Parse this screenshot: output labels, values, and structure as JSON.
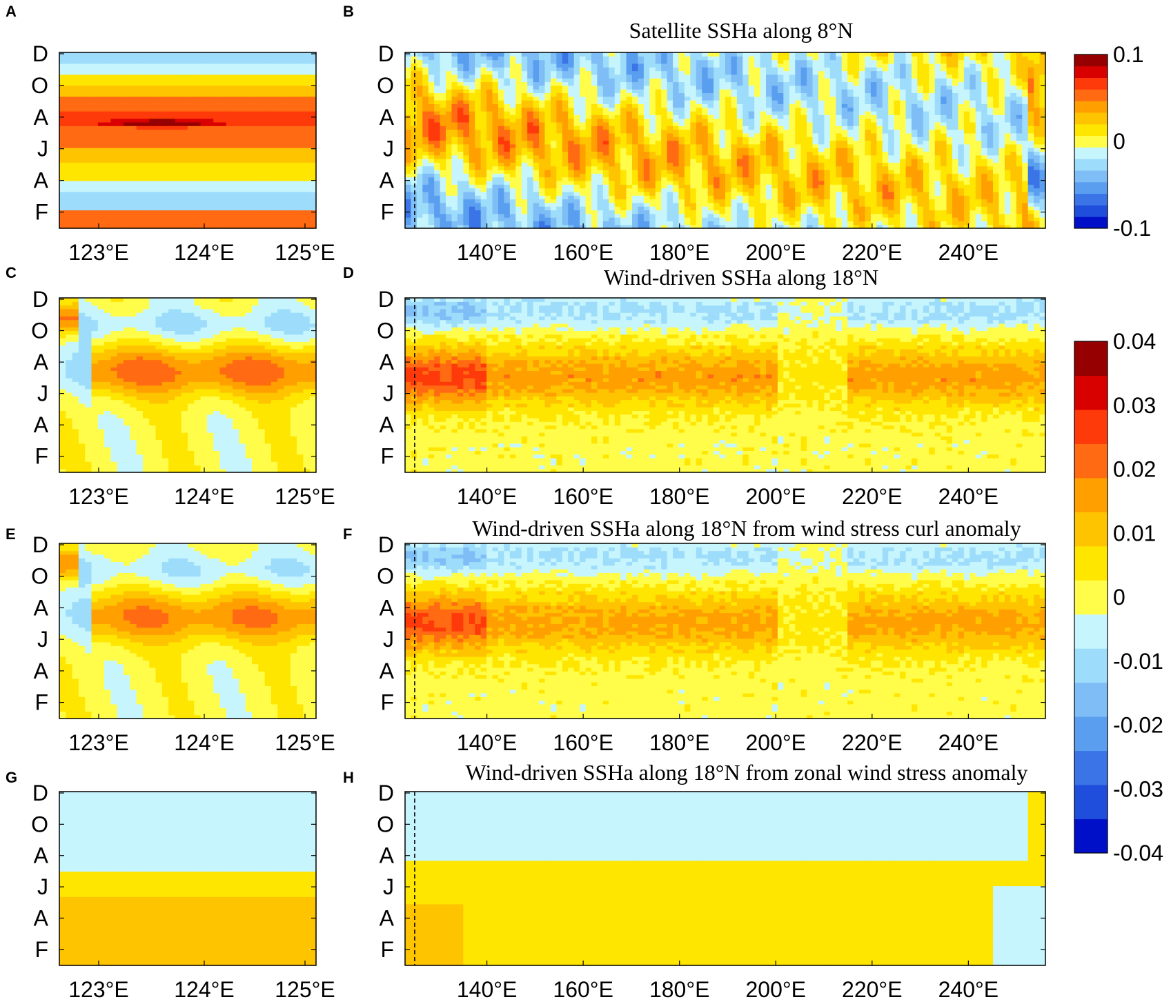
{
  "figure": {
    "panel_letters": [
      "A",
      "B",
      "C",
      "D",
      "E",
      "F",
      "G",
      "H"
    ],
    "month_labels": [
      "D",
      "O",
      "A",
      "J",
      "A",
      "F"
    ],
    "left_x_ticks": [
      "123°E",
      "124°E",
      "125°E"
    ],
    "right_x_ticks": [
      "140°E",
      "160°E",
      "180°E",
      "200°E",
      "220°E",
      "240°E"
    ]
  },
  "colors": {
    "scale": [
      "#0010c8",
      "#1f4ddc",
      "#3a74e6",
      "#5a9ef0",
      "#7fbdf6",
      "#9ddcfa",
      "#c6f5fd",
      "#fffd4a",
      "#ffe600",
      "#ffc400",
      "#ff9f00",
      "#ff6a12",
      "#ff3a0a",
      "#d90000",
      "#960000"
    ]
  },
  "chart_data": [
    {
      "panel": "A",
      "type": "heatmap",
      "title": "",
      "x": [
        122.6,
        125.1
      ],
      "xticks": [
        "123°E",
        "124°E",
        "125°E"
      ],
      "y_months": [
        "F",
        "A",
        "J",
        "A",
        "O",
        "D"
      ],
      "bands": [
        {
          "level": 0.06,
          "start": 0
        },
        {
          "level": -0.02,
          "start": 0.11
        },
        {
          "level": -0.01,
          "start": 0.2
        },
        {
          "level": 0.01,
          "start": 0.28
        },
        {
          "level": 0.02,
          "start": 0.38
        },
        {
          "level": 0.05,
          "start": 0.46
        },
        {
          "level": 0.06,
          "start": 0.58
        },
        {
          "level": 0.05,
          "start": 0.67
        },
        {
          "level": 0.02,
          "start": 0.75
        },
        {
          "level": 0.01,
          "start": 0.81
        },
        {
          "level": -0.01,
          "start": 0.87
        },
        {
          "level": -0.02,
          "start": 0.93
        }
      ],
      "cmap": "sat",
      "clim": [
        -0.1,
        0.1
      ]
    },
    {
      "panel": "B",
      "type": "heatmap",
      "title": "Satellite SSHa along 8°N",
      "x": [
        123,
        256
      ],
      "xticks": [
        "140°E",
        "160°E",
        "180°E",
        "200°E",
        "220°E",
        "240°E"
      ],
      "xtick_values": [
        140,
        160,
        180,
        200,
        220,
        240
      ],
      "y_months": [
        "F",
        "A",
        "J",
        "A",
        "O",
        "D"
      ],
      "dashed_x": 125,
      "cmap": "sat",
      "clim": [
        -0.1,
        0.1
      ]
    },
    {
      "panel": "C",
      "type": "heatmap",
      "title": "",
      "x": [
        122.6,
        125.1
      ],
      "xticks": [
        "123°E",
        "124°E",
        "125°E"
      ],
      "y_months": [
        "F",
        "A",
        "J",
        "A",
        "O",
        "D"
      ],
      "cmap": "wind",
      "clim": [
        -0.04,
        0.04
      ]
    },
    {
      "panel": "D",
      "type": "heatmap",
      "title": "Wind-driven SSHa along 18°N",
      "x": [
        123,
        256
      ],
      "xticks": [
        "140°E",
        "160°E",
        "180°E",
        "200°E",
        "220°E",
        "240°E"
      ],
      "xtick_values": [
        140,
        160,
        180,
        200,
        220,
        240
      ],
      "y_months": [
        "F",
        "A",
        "J",
        "A",
        "O",
        "D"
      ],
      "dashed_x": 125,
      "cmap": "wind",
      "clim": [
        -0.04,
        0.04
      ]
    },
    {
      "panel": "E",
      "type": "heatmap",
      "title": "",
      "x": [
        122.6,
        125.1
      ],
      "xticks": [
        "123°E",
        "124°E",
        "125°E"
      ],
      "y_months": [
        "F",
        "A",
        "J",
        "A",
        "O",
        "D"
      ],
      "cmap": "wind",
      "clim": [
        -0.04,
        0.04
      ]
    },
    {
      "panel": "F",
      "type": "heatmap",
      "title": "Wind-driven SSHa along 18°N from wind stress curl anomaly",
      "x": [
        123,
        256
      ],
      "xticks": [
        "140°E",
        "160°E",
        "180°E",
        "200°E",
        "220°E",
        "240°E"
      ],
      "xtick_values": [
        140,
        160,
        180,
        200,
        220,
        240
      ],
      "y_months": [
        "F",
        "A",
        "J",
        "A",
        "O",
        "D"
      ],
      "dashed_x": 125,
      "cmap": "wind",
      "clim": [
        -0.04,
        0.04
      ]
    },
    {
      "panel": "G",
      "type": "heatmap",
      "title": "",
      "x": [
        122.6,
        125.1
      ],
      "xticks": [
        "123°E",
        "124°E",
        "125°E"
      ],
      "y_months": [
        "F",
        "A",
        "J",
        "A",
        "O",
        "D"
      ],
      "cmap": "wind",
      "clim": [
        -0.04,
        0.04
      ]
    },
    {
      "panel": "H",
      "type": "heatmap",
      "title": "Wind-driven SSHa along 18°N from zonal wind stress anomaly",
      "x": [
        123,
        256
      ],
      "xticks": [
        "140°E",
        "160°E",
        "180°E",
        "200°E",
        "220°E",
        "240°E"
      ],
      "xtick_values": [
        140,
        160,
        180,
        200,
        220,
        240
      ],
      "y_months": [
        "F",
        "A",
        "J",
        "A",
        "O",
        "D"
      ],
      "dashed_x": 125,
      "cmap": "wind",
      "clim": [
        -0.04,
        0.04
      ]
    }
  ],
  "colorbars": [
    {
      "name": "satellite",
      "min_label": "-0.1",
      "max_label": "0.1",
      "ticks": [
        "0.1",
        "0",
        "-0.1"
      ]
    },
    {
      "name": "wind-driven",
      "ticks": [
        "0.04",
        "0.03",
        "0.02",
        "0.01",
        "0",
        "-0.01",
        "-0.02",
        "-0.03",
        "-0.04"
      ]
    }
  ]
}
